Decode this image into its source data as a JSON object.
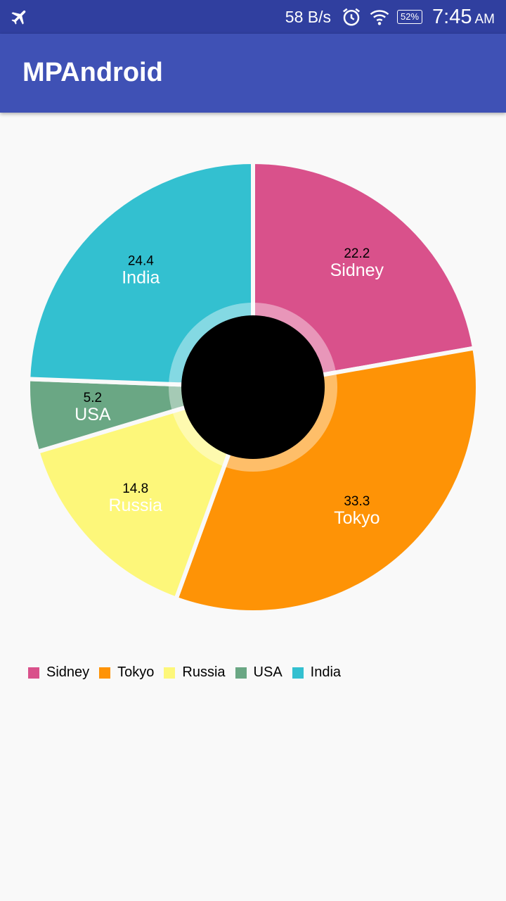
{
  "status_bar": {
    "net_speed": "58 B/s",
    "battery": "52%",
    "time": "7:45",
    "ampm": "AM",
    "icons": [
      "airplane-mode-icon",
      "alarm-icon",
      "wifi-icon",
      "battery-icon"
    ]
  },
  "app_bar": {
    "title": "MPAndroid",
    "color": "#3f51b5"
  },
  "chart_data": {
    "type": "pie",
    "hole": true,
    "hole_color": "#000000",
    "legend_position": "bottom-left",
    "slices": [
      {
        "label": "Sidney",
        "value": 22.2,
        "display": "22.2",
        "color": "#d9518b"
      },
      {
        "label": "Tokyo",
        "value": 33.3,
        "display": "33.3",
        "color": "#fe9306"
      },
      {
        "label": "Russia",
        "value": 14.8,
        "display": "14.8",
        "color": "#fdf77a"
      },
      {
        "label": "USA",
        "value": 5.2,
        "display": "5.2",
        "color": "#6aa784"
      },
      {
        "label": "India",
        "value": 24.4,
        "display": "24.4",
        "color": "#33c0d0"
      }
    ]
  }
}
